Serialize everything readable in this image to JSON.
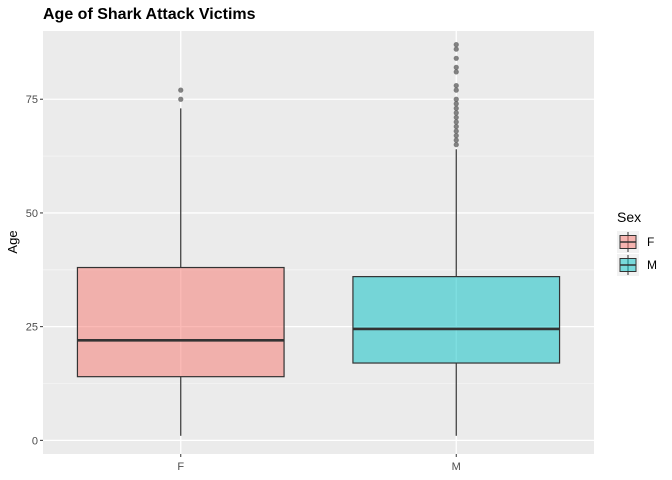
{
  "chart_data": {
    "type": "boxplot",
    "title": "Age of Shark Attack Victims",
    "xlabel": "",
    "ylabel": "Age",
    "ylim": [
      -3,
      90
    ],
    "yticks": [
      0,
      25,
      50,
      75
    ],
    "grid": true,
    "legend": {
      "title": "Sex",
      "position": "right",
      "entries": [
        {
          "label": "F",
          "color": "#F8766D"
        },
        {
          "label": "M",
          "color": "#00BFC4"
        }
      ]
    },
    "categories": [
      "F",
      "M"
    ],
    "series": [
      {
        "name": "F",
        "color": "#F8766D",
        "whisker_low": 1,
        "q1": 14,
        "median": 22,
        "q3": 38,
        "whisker_high": 73,
        "outliers": [
          75,
          77
        ]
      },
      {
        "name": "M",
        "color": "#00BFC4",
        "whisker_low": 1,
        "q1": 17,
        "median": 24.5,
        "q3": 36,
        "whisker_high": 64,
        "outliers": [
          65,
          66,
          67,
          68,
          69,
          70,
          71,
          72,
          73,
          74,
          75,
          77,
          78,
          81,
          82,
          84,
          86,
          87
        ]
      }
    ]
  }
}
